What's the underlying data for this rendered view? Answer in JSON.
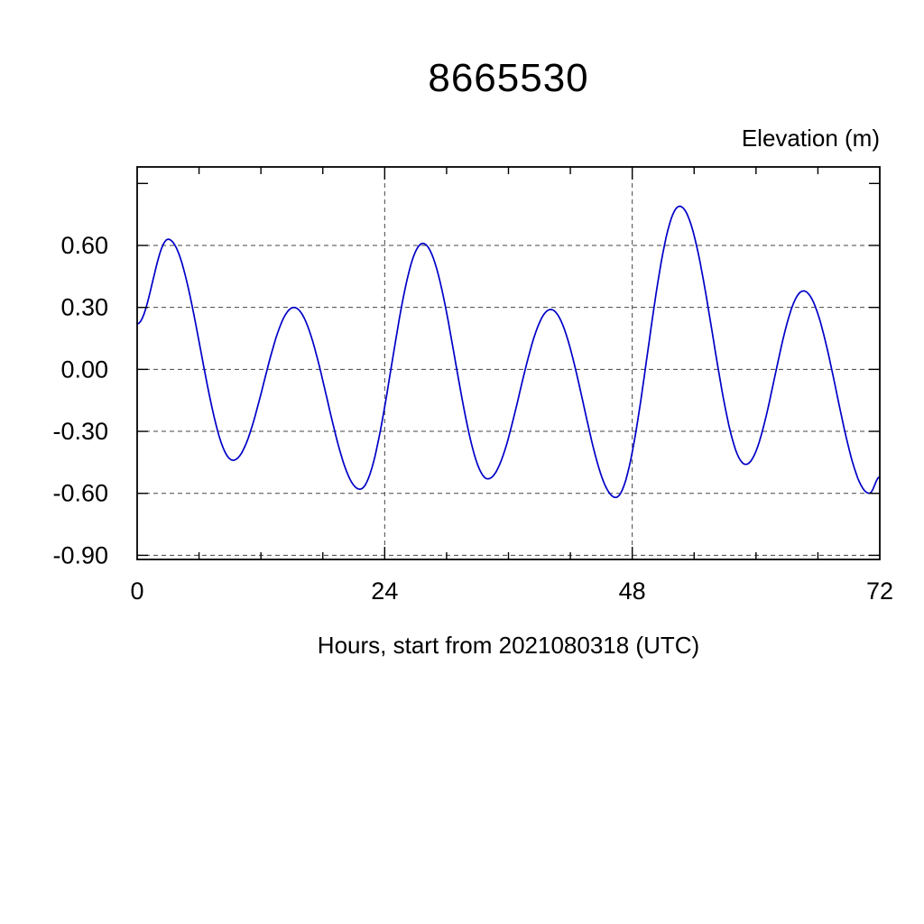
{
  "figure": {
    "title": "8665530",
    "y_axis_title": "Elevation (m)",
    "x_axis_title": "Hours, start from 2021080318 (UTC)"
  },
  "chart_data": {
    "type": "line",
    "title": "8665530",
    "xlabel": "Hours, start from 2021080318 (UTC)",
    "ylabel": "Elevation (m)",
    "xlim": [
      0,
      72
    ],
    "ylim": [
      -0.92,
      0.98
    ],
    "x_major_ticks": [
      0,
      24,
      48,
      72
    ],
    "x_major_tick_labels": [
      "0",
      "24",
      "48",
      "72"
    ],
    "x_minor_tick_step": 6,
    "x_gridlines": [
      24,
      48
    ],
    "y_major_ticks": [
      0.9,
      0.6,
      0.3,
      0.0,
      -0.3,
      -0.6,
      -0.9
    ],
    "y_gridlines": [
      0.6,
      0.3,
      0.0,
      -0.3,
      -0.6,
      -0.9
    ],
    "y_tick_labels": [
      "0.60",
      "0.30",
      "0.00",
      "-0.30",
      "-0.60",
      "-0.90"
    ],
    "grid_style": "dashed",
    "legend": "none",
    "line_color": "#0000C8",
    "series": [
      {
        "name": "tide elevation (m)",
        "extremes": [
          {
            "t": 0.0,
            "y": 0.22
          },
          {
            "t": 3.0,
            "y": 0.63
          },
          {
            "t": 9.3,
            "y": -0.44
          },
          {
            "t": 15.2,
            "y": 0.3
          },
          {
            "t": 21.6,
            "y": -0.58
          },
          {
            "t": 27.7,
            "y": 0.61
          },
          {
            "t": 34.0,
            "y": -0.53
          },
          {
            "t": 40.1,
            "y": 0.29
          },
          {
            "t": 46.4,
            "y": -0.62
          },
          {
            "t": 52.6,
            "y": 0.79
          },
          {
            "t": 59.0,
            "y": -0.46
          },
          {
            "t": 64.6,
            "y": 0.38
          },
          {
            "t": 71.0,
            "y": -0.6
          },
          {
            "t": 72.0,
            "y": -0.52
          }
        ]
      }
    ]
  }
}
